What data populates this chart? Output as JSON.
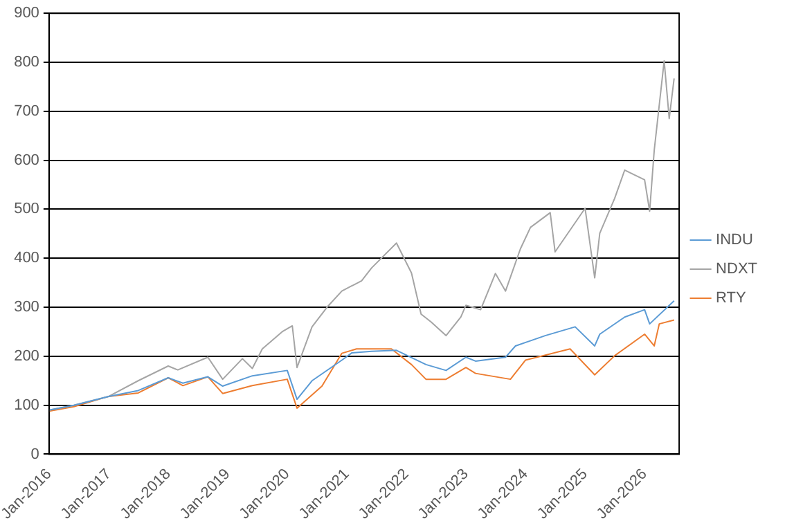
{
  "chart_data": {
    "type": "line",
    "legend": "right",
    "grid": "y",
    "marker": "none",
    "line_style": "solid",
    "xlim": [
      "2016-01",
      "2026-08"
    ],
    "xticks": [
      {
        "value": "2016-01",
        "label": "Jan-2016"
      },
      {
        "value": "2017-01",
        "label": "Jan-2017"
      },
      {
        "value": "2018-01",
        "label": "Jan-2018"
      },
      {
        "value": "2019-01",
        "label": "Jan-2019"
      },
      {
        "value": "2020-01",
        "label": "Jan-2020"
      },
      {
        "value": "2021-01",
        "label": "Jan-2021"
      },
      {
        "value": "2022-01",
        "label": "Jan-2022"
      },
      {
        "value": "2023-01",
        "label": "Jan-2023"
      },
      {
        "value": "2024-01",
        "label": "Jan-2024"
      },
      {
        "value": "2025-01",
        "label": "Jan-2025"
      },
      {
        "value": "2026-01",
        "label": "Jan-2026"
      }
    ],
    "ylim": [
      0,
      900
    ],
    "yticks": [
      0,
      100,
      200,
      300,
      400,
      500,
      600,
      700,
      800,
      900
    ],
    "series": [
      {
        "name": "INDU",
        "color": "#5b9bd5",
        "x": [
          "2016-01",
          "2016-06",
          "2017-01",
          "2017-07",
          "2018-01",
          "2018-04",
          "2018-09",
          "2018-12",
          "2019-06",
          "2020-01",
          "2020-03",
          "2020-06",
          "2020-12",
          "2021-02",
          "2021-06",
          "2021-11",
          "2022-05",
          "2022-09",
          "2023-01",
          "2023-03",
          "2023-09",
          "2023-11",
          "2024-05",
          "2024-11",
          "2025-03",
          "2025-04",
          "2025-09",
          "2026-01",
          "2026-02",
          "2026-07"
        ],
        "values": [
          90,
          100,
          118,
          130,
          156,
          145,
          158,
          139,
          160,
          171,
          112,
          150,
          192,
          207,
          210,
          212,
          183,
          171,
          198,
          190,
          198,
          221,
          242,
          260,
          221,
          245,
          280,
          295,
          266,
          313
        ]
      },
      {
        "name": "NDXT",
        "color": "#a5a5a5",
        "x": [
          "2016-01",
          "2016-06",
          "2017-01",
          "2017-07",
          "2018-01",
          "2018-03",
          "2018-09",
          "2018-12",
          "2019-04",
          "2019-06",
          "2019-08",
          "2019-12",
          "2020-02",
          "2020-03",
          "2020-06",
          "2020-09",
          "2020-12",
          "2021-04",
          "2021-06",
          "2021-11",
          "2022-02",
          "2022-04",
          "2022-06",
          "2022-09",
          "2022-12",
          "2023-01",
          "2023-04",
          "2023-07",
          "2023-09",
          "2023-12",
          "2024-02",
          "2024-06",
          "2024-07",
          "2025-01",
          "2025-03",
          "2025-04",
          "2025-07",
          "2025-09",
          "2026-01",
          "2026-02",
          "2026-03",
          "2026-05",
          "2026-06",
          "2026-07"
        ],
        "values": [
          90,
          100,
          118,
          150,
          180,
          172,
          198,
          153,
          195,
          175,
          215,
          250,
          262,
          177,
          260,
          300,
          333,
          354,
          380,
          431,
          370,
          286,
          270,
          242,
          280,
          304,
          295,
          369,
          333,
          419,
          463,
          493,
          413,
          502,
          360,
          451,
          522,
          580,
          560,
          496,
          620,
          803,
          685,
          767
        ]
      },
      {
        "name": "RTY",
        "color": "#ed7d31",
        "x": [
          "2016-01",
          "2016-06",
          "2017-01",
          "2017-07",
          "2018-01",
          "2018-04",
          "2018-09",
          "2018-12",
          "2019-06",
          "2020-01",
          "2020-03",
          "2020-08",
          "2020-12",
          "2021-03",
          "2021-10",
          "2022-02",
          "2022-05",
          "2022-09",
          "2023-01",
          "2023-03",
          "2023-10",
          "2024-01",
          "2024-10",
          "2025-03",
          "2025-07",
          "2026-01",
          "2026-03",
          "2026-04",
          "2026-07"
        ],
        "values": [
          88,
          97,
          118,
          125,
          156,
          140,
          158,
          124,
          140,
          153,
          94,
          139,
          206,
          215,
          215,
          183,
          153,
          153,
          177,
          165,
          153,
          192,
          215,
          162,
          201,
          245,
          221,
          266,
          274
        ]
      }
    ]
  }
}
